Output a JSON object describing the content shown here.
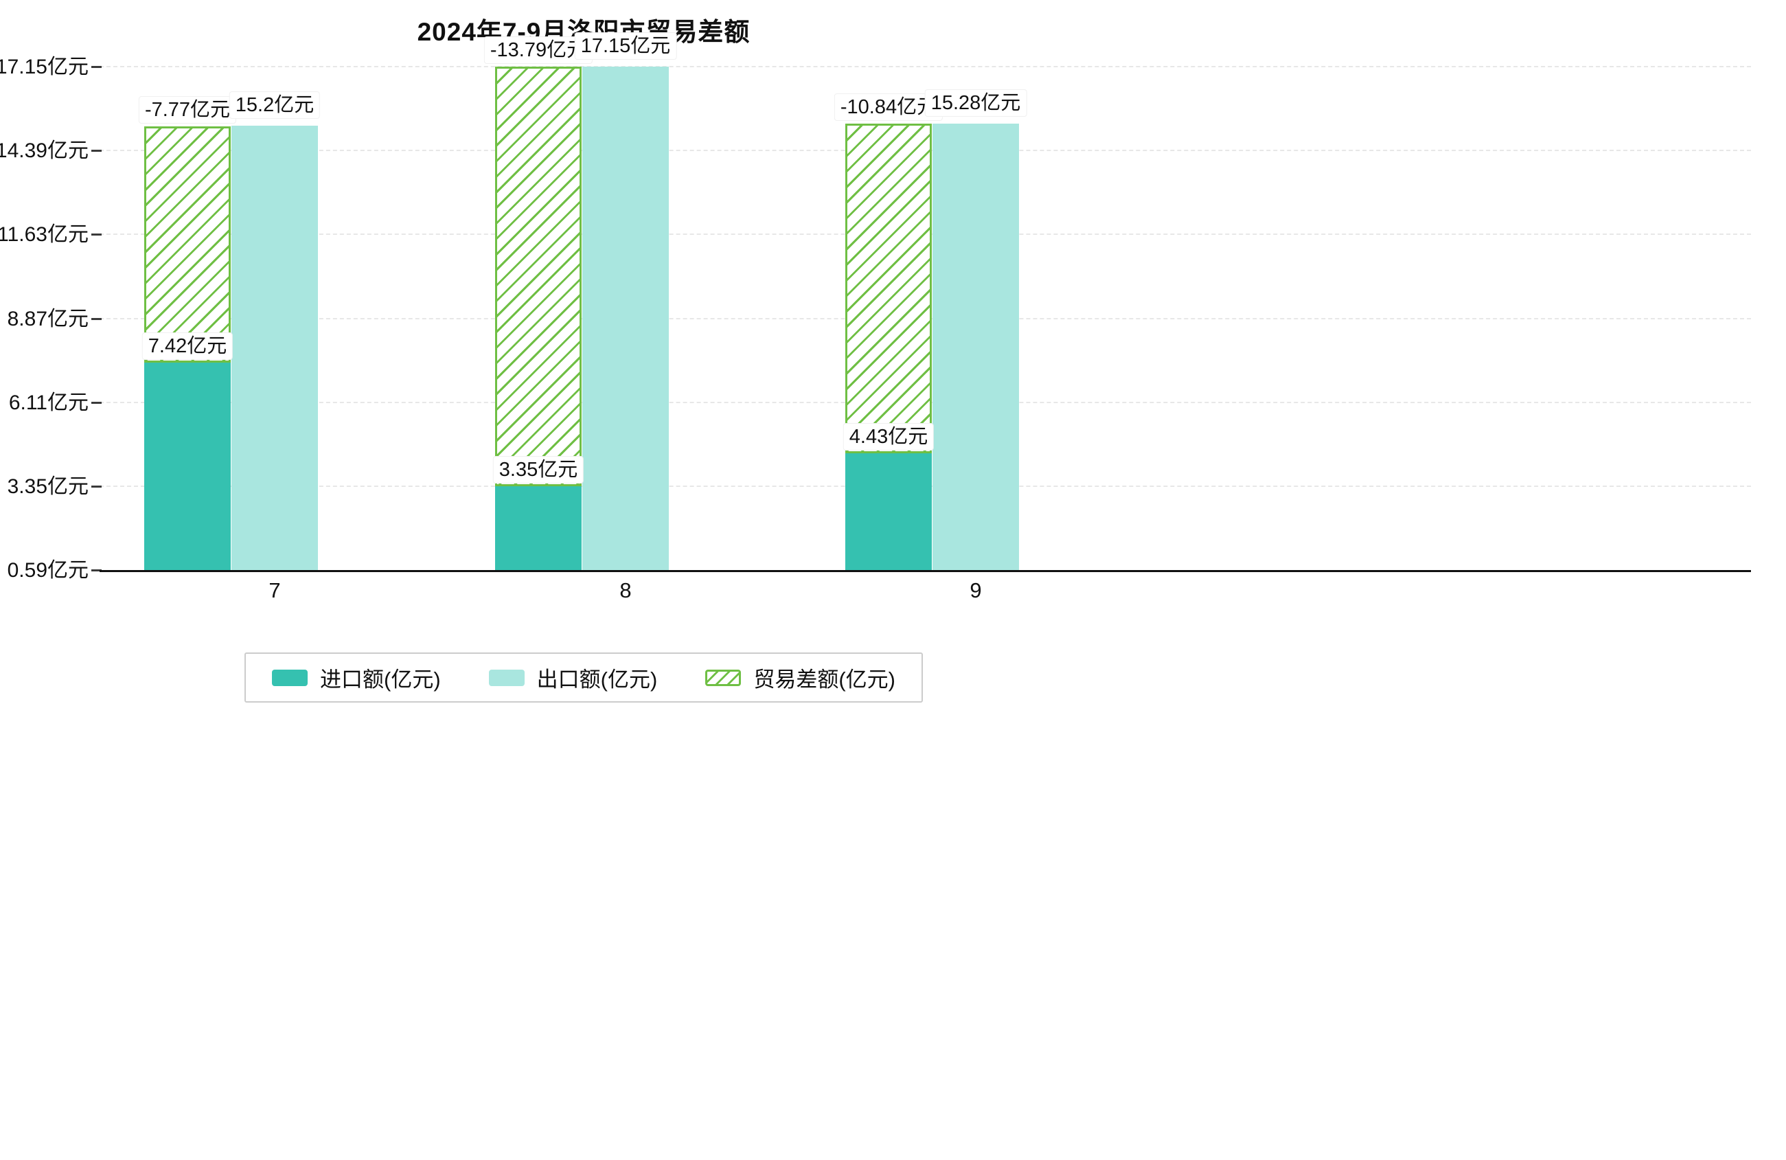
{
  "title": "2024年7-9月洛阳市贸易差额",
  "chart_data": {
    "type": "bar",
    "categories": [
      "7",
      "8",
      "9"
    ],
    "series": [
      {
        "name": "进口额(亿元)",
        "values": [
          7.42,
          3.35,
          4.43
        ],
        "color": "#35c1b0",
        "style": "solid"
      },
      {
        "name": "出口额(亿元)",
        "values": [
          15.2,
          17.15,
          15.28
        ],
        "color": "#a9e6df",
        "style": "solid"
      },
      {
        "name": "贸易差额(亿元)",
        "values": [
          -7.77,
          -13.79,
          -10.84
        ],
        "color": "#6fbf44",
        "style": "hatch"
      }
    ],
    "labels": {
      "import": [
        "7.42亿元",
        "3.35亿元",
        "4.43亿元"
      ],
      "export": [
        "15.2亿元",
        "17.15亿元",
        "15.28亿元"
      ],
      "balance": [
        "-7.77亿元",
        "-13.79亿元",
        "-10.84亿元"
      ]
    },
    "y_ticks": [
      "0.59亿元",
      "3.35亿元",
      "6.11亿元",
      "8.87亿元",
      "11.63亿元",
      "14.39亿元",
      "17.15亿元"
    ],
    "y_tick_values": [
      0.59,
      3.35,
      6.11,
      8.87,
      11.63,
      14.39,
      17.15
    ],
    "ylim": [
      0.59,
      17.15
    ],
    "grid": true,
    "legend_position": "bottom"
  },
  "legend": {
    "items": [
      "进口额(亿元)",
      "出口额(亿元)",
      "贸易差额(亿元)"
    ]
  }
}
